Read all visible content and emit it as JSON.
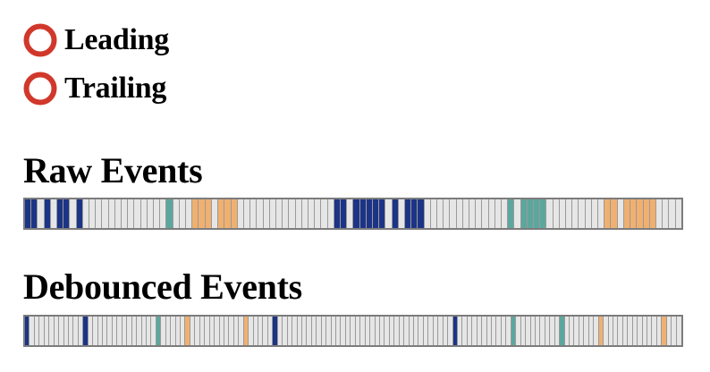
{
  "options": [
    {
      "id": "leading",
      "label": "Leading",
      "selected": false
    },
    {
      "id": "trailing",
      "label": "Trailing",
      "selected": false
    }
  ],
  "radio_color": "#d0382b",
  "raw": {
    "title": "Raw Events",
    "cells": "BBEBEBBEBEEEEEEEEEEEEETEEEOOOEOOOEEEEEEEEEEEEEEEBBEBBBBBEBEBBBEEEEEEEEEEEEETETTTTEEEEEEEEEOOEOOOOOEEEE"
  },
  "debounced": {
    "title": "Debounced Events",
    "cells": "BEEEEEEEEEEEBEEEEEEEEEEEEEETEEEEEOEEEEEEEEEEEOEEEEEBEEEEEEEEEEEEEEEEEEEEEEEEEEEEEEEEEEEEBEEEEEEEEEEETEEEEEEEEETEEEEEEEOEEEEEEEEEEEEOEEE"
  },
  "colors": {
    "B": "#1c3486",
    "T": "#5ba79d",
    "O": "#f0b070",
    "E": "#e6e6e6"
  }
}
